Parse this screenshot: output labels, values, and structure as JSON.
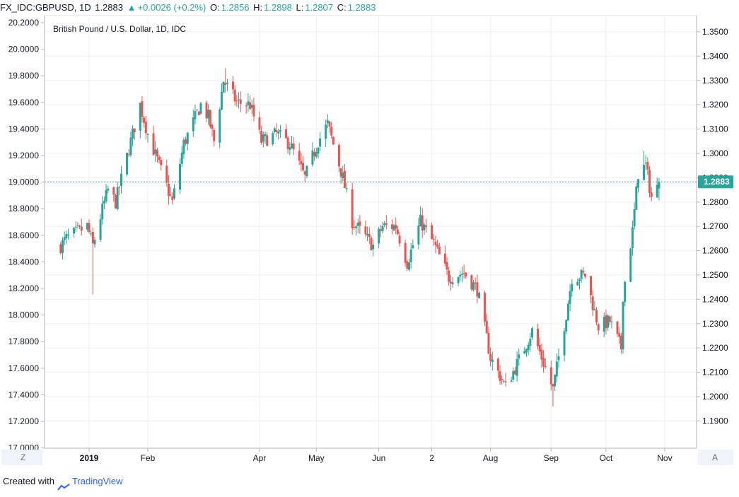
{
  "header": {
    "symbol": "FX_IDC:GBPUSD, 1D",
    "last": "1.2883",
    "change": "+0.0026 (+0.2%)",
    "o_label": "O:",
    "o_value": "1.2856",
    "h_label": "H:",
    "h_value": "1.2898",
    "l_label": "L:",
    "l_value": "1.2807",
    "c_label": "C:",
    "c_value": "1.2883"
  },
  "corner": {
    "left_button": "Z",
    "right_button": "A"
  },
  "footer": {
    "created_with": "Created with",
    "brand": "TradingView"
  },
  "colors": {
    "up": "#26a69a",
    "down": "#ef5350",
    "grid": "#eef0f3",
    "axis": "#b2b5be"
  },
  "chart_data": {
    "type": "candlestick",
    "title": "British Pound / U.S. Dollar, 1D, IDC",
    "last_price_label": "1.2883",
    "last_price": 1.2883,
    "right_axis": {
      "ylim": [
        1.184,
        1.358
      ],
      "ticks": [
        "1.3500",
        "1.3400",
        "1.3300",
        "1.3200",
        "1.3100",
        "1.3000",
        "1.2900",
        "1.2800",
        "1.2700",
        "1.2600",
        "1.2500",
        "1.2400",
        "1.2300",
        "1.2200",
        "1.2100",
        "1.2000",
        "1.1900"
      ]
    },
    "left_axis": {
      "ylim": [
        17.0,
        20.3
      ],
      "ticks": [
        "20.2000",
        "20.0000",
        "19.8000",
        "19.6000",
        "19.4000",
        "19.2000",
        "19.0000",
        "18.8000",
        "18.6000",
        "18.4000",
        "18.2000",
        "18.0000",
        "17.8000",
        "17.6000",
        "17.4000",
        "17.2000",
        "17.0000"
      ]
    },
    "x_axis": {
      "labels": [
        "2019",
        "Feb",
        "Apr",
        "May",
        "Jun",
        "2",
        "Aug",
        "Sep",
        "Oct",
        "Nov"
      ],
      "label_dates": [
        "2019-01-01",
        "2019-02-01",
        "2019-04-01",
        "2019-05-01",
        "2019-06-03",
        "2019-07-01",
        "2019-08-01",
        "2019-09-02",
        "2019-10-01",
        "2019-11-01"
      ]
    },
    "anchors": [
      [
        "2018-12-17",
        1.262
      ],
      [
        "2018-12-20",
        1.265
      ],
      [
        "2018-12-31",
        1.27
      ],
      [
        "2019-01-03",
        1.262
      ],
      [
        "2019-01-08",
        1.277
      ],
      [
        "2019-01-11",
        1.285
      ],
      [
        "2019-01-15",
        1.28
      ],
      [
        "2019-01-23",
        1.305
      ],
      [
        "2019-01-28",
        1.32
      ],
      [
        "2019-02-01",
        1.308
      ],
      [
        "2019-02-07",
        1.295
      ],
      [
        "2019-02-14",
        1.28
      ],
      [
        "2019-02-20",
        1.304
      ],
      [
        "2019-03-01",
        1.32
      ],
      [
        "2019-03-05",
        1.315
      ],
      [
        "2019-03-08",
        1.305
      ],
      [
        "2019-03-13",
        1.33
      ],
      [
        "2019-03-20",
        1.321
      ],
      [
        "2019-03-27",
        1.32
      ],
      [
        "2019-04-02",
        1.305
      ],
      [
        "2019-04-10",
        1.308
      ],
      [
        "2019-04-17",
        1.304
      ],
      [
        "2019-04-25",
        1.29
      ],
      [
        "2019-05-02",
        1.305
      ],
      [
        "2019-05-07",
        1.312
      ],
      [
        "2019-05-15",
        1.29
      ],
      [
        "2019-05-20",
        1.272
      ],
      [
        "2019-05-31",
        1.262
      ],
      [
        "2019-06-05",
        1.27
      ],
      [
        "2019-06-12",
        1.27
      ],
      [
        "2019-06-18",
        1.255
      ],
      [
        "2019-06-25",
        1.272
      ],
      [
        "2019-07-02",
        1.263
      ],
      [
        "2019-07-10",
        1.249
      ],
      [
        "2019-07-18",
        1.251
      ],
      [
        "2019-07-25",
        1.244
      ],
      [
        "2019-08-01",
        1.216
      ],
      [
        "2019-08-09",
        1.204
      ],
      [
        "2019-08-16",
        1.215
      ],
      [
        "2019-08-23",
        1.227
      ],
      [
        "2019-09-03",
        1.203
      ],
      [
        "2019-09-10",
        1.234
      ],
      [
        "2019-09-13",
        1.249
      ],
      [
        "2019-09-20",
        1.25
      ],
      [
        "2019-09-27",
        1.229
      ],
      [
        "2019-10-03",
        1.231
      ],
      [
        "2019-10-09",
        1.22
      ],
      [
        "2019-10-10",
        1.242
      ],
      [
        "2019-10-15",
        1.268
      ],
      [
        "2019-10-18",
        1.292
      ],
      [
        "2019-10-22",
        1.295
      ],
      [
        "2019-10-25",
        1.282
      ],
      [
        "2019-10-28",
        1.2857
      ],
      [
        "2019-10-29",
        1.2883
      ]
    ],
    "wick_extremes": [
      [
        "2019-01-03",
        1.242,
        "low"
      ],
      [
        "2019-03-14",
        1.335,
        "high"
      ],
      [
        "2019-09-03",
        1.196,
        "low"
      ],
      [
        "2019-10-21",
        1.301,
        "high"
      ]
    ],
    "last_candle": {
      "date": "2019-10-29",
      "open": 1.2856,
      "high": 1.2898,
      "low": 1.2807,
      "close": 1.2883
    }
  }
}
